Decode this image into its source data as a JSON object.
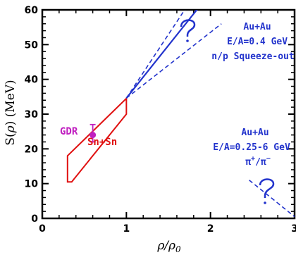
{
  "chart_data": {
    "type": "line",
    "title": "",
    "xlabel": "ρ/ρ0",
    "ylabel": "S(ρ) (MeV)",
    "xlim": [
      0,
      3
    ],
    "ylim": [
      0,
      60
    ],
    "x_ticks": [
      0,
      1,
      2,
      3
    ],
    "y_ticks": [
      0,
      10,
      20,
      30,
      40,
      50,
      60
    ],
    "x_tick_labels": [
      "0",
      "1",
      "2",
      "3"
    ],
    "y_tick_labels": [
      "0",
      "10",
      "20",
      "30",
      "40",
      "50",
      "60"
    ],
    "grid": false,
    "colors": {
      "blue": "#2233cc",
      "red": "#e01010",
      "magenta": "#c020c0",
      "axis": "#000000"
    },
    "series": [
      {
        "label": "solid-center",
        "style": "solid",
        "color": "blue",
        "points": [
          [
            1.0,
            34.6
          ],
          [
            1.87,
            61
          ]
        ]
      },
      {
        "label": "dashed-upper",
        "style": "dashed",
        "color": "blue",
        "points": [
          [
            1.0,
            34.6
          ],
          [
            1.72,
            61
          ]
        ]
      },
      {
        "label": "dashed-lower",
        "style": "dashed",
        "color": "blue",
        "points": [
          [
            1.0,
            34.6
          ],
          [
            2.13,
            56
          ]
        ]
      },
      {
        "label": "pion-dashed",
        "style": "dashed",
        "color": "blue",
        "points": [
          [
            2.46,
            11
          ],
          [
            3.0,
            0.5
          ]
        ]
      }
    ],
    "regions": [
      {
        "label": "Sn+Sn",
        "color": "red",
        "polygon": [
          [
            0.3,
            10.5
          ],
          [
            0.3,
            18
          ],
          [
            1.0,
            34.5
          ],
          [
            1.0,
            30
          ],
          [
            0.35,
            10.5
          ]
        ]
      }
    ],
    "points": [
      {
        "label": "GDR",
        "x": 0.6,
        "y": 24,
        "yerr": [
          22,
          27
        ],
        "color": "magenta"
      }
    ],
    "annotations": [
      {
        "id": "au1-a",
        "text": "Au+Au",
        "color": "blue"
      },
      {
        "id": "au1-b",
        "text": "E/A=0.4 GeV",
        "color": "blue"
      },
      {
        "id": "au1-c",
        "text": "n/p Squeeze-out",
        "color": "blue"
      },
      {
        "id": "au2-a",
        "text": "Au+Au",
        "color": "blue"
      },
      {
        "id": "au2-b",
        "text": "E/A=0.25-6 GeV",
        "color": "blue"
      },
      {
        "id": "au2-c",
        "text": "π+/π−",
        "color": "blue"
      },
      {
        "id": "sn",
        "text": "Sn+Sn",
        "color": "red"
      },
      {
        "id": "gdr",
        "text": "GDR",
        "color": "magenta"
      }
    ]
  }
}
